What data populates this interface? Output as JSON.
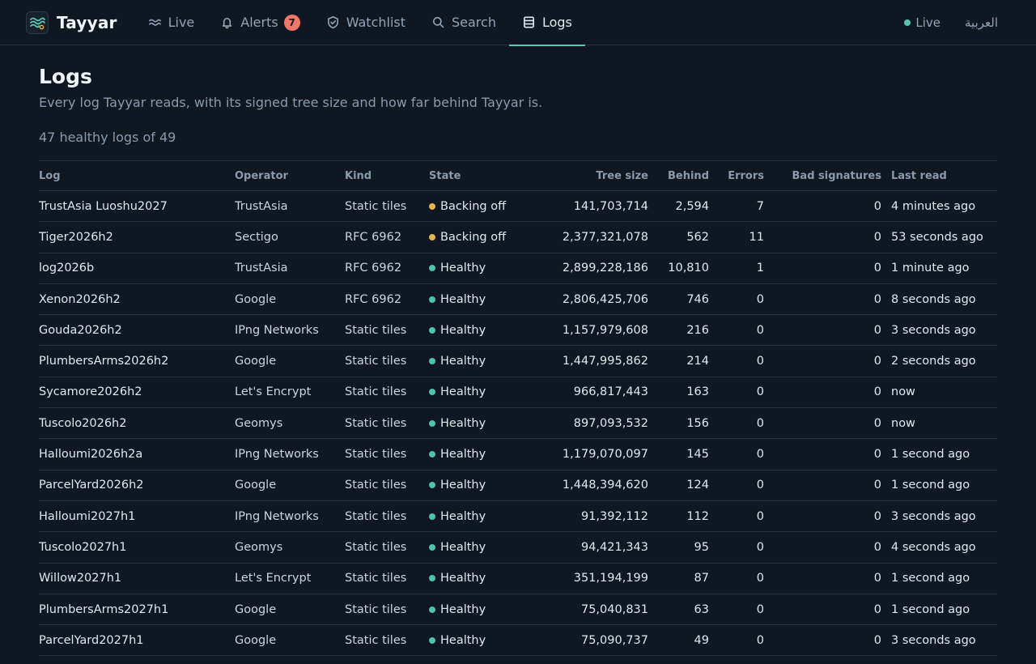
{
  "app": {
    "name": "Tayyar"
  },
  "nav": {
    "items": [
      {
        "label": "Live",
        "icon": "waves-icon"
      },
      {
        "label": "Alerts",
        "icon": "bell-icon",
        "badge": "7"
      },
      {
        "label": "Watchlist",
        "icon": "shield-icon"
      },
      {
        "label": "Search",
        "icon": "search-icon"
      },
      {
        "label": "Logs",
        "icon": "list-icon",
        "active": true
      }
    ]
  },
  "topbar": {
    "live_label": "Live",
    "language_label": "العربية"
  },
  "colors": {
    "accent": "#5ec7b5",
    "healthy": "#4fc4a8",
    "backing_off": "#e9b44c",
    "badge": "#f0786b",
    "background": "#0f1720"
  },
  "page": {
    "title": "Logs",
    "subtitle": "Every log Tayyar reads, with its signed tree size and how far behind Tayyar is.",
    "summary": "47 healthy logs of 49"
  },
  "table": {
    "columns": {
      "log": "Log",
      "operator": "Operator",
      "kind": "Kind",
      "state": "State",
      "tree_size": "Tree size",
      "behind": "Behind",
      "errors": "Errors",
      "bad_signatures": "Bad signatures",
      "last_read": "Last read"
    },
    "rows": [
      {
        "log": "TrustAsia Luoshu2027",
        "operator": "TrustAsia",
        "kind": "Static tiles",
        "state": "Backing off",
        "tree_size": "141,703,714",
        "behind": "2,594",
        "errors": "7",
        "bad_signatures": "0",
        "last_read": "4 minutes ago"
      },
      {
        "log": "Tiger2026h2",
        "operator": "Sectigo",
        "kind": "RFC 6962",
        "state": "Backing off",
        "tree_size": "2,377,321,078",
        "behind": "562",
        "errors": "11",
        "bad_signatures": "0",
        "last_read": "53 seconds ago"
      },
      {
        "log": "log2026b",
        "operator": "TrustAsia",
        "kind": "RFC 6962",
        "state": "Healthy",
        "tree_size": "2,899,228,186",
        "behind": "10,810",
        "errors": "1",
        "bad_signatures": "0",
        "last_read": "1 minute ago"
      },
      {
        "log": "Xenon2026h2",
        "operator": "Google",
        "kind": "RFC 6962",
        "state": "Healthy",
        "tree_size": "2,806,425,706",
        "behind": "746",
        "errors": "0",
        "bad_signatures": "0",
        "last_read": "8 seconds ago"
      },
      {
        "log": "Gouda2026h2",
        "operator": "IPng Networks",
        "kind": "Static tiles",
        "state": "Healthy",
        "tree_size": "1,157,979,608",
        "behind": "216",
        "errors": "0",
        "bad_signatures": "0",
        "last_read": "3 seconds ago"
      },
      {
        "log": "PlumbersArms2026h2",
        "operator": "Google",
        "kind": "Static tiles",
        "state": "Healthy",
        "tree_size": "1,447,995,862",
        "behind": "214",
        "errors": "0",
        "bad_signatures": "0",
        "last_read": "2 seconds ago"
      },
      {
        "log": "Sycamore2026h2",
        "operator": "Let's Encrypt",
        "kind": "Static tiles",
        "state": "Healthy",
        "tree_size": "966,817,443",
        "behind": "163",
        "errors": "0",
        "bad_signatures": "0",
        "last_read": "now"
      },
      {
        "log": "Tuscolo2026h2",
        "operator": "Geomys",
        "kind": "Static tiles",
        "state": "Healthy",
        "tree_size": "897,093,532",
        "behind": "156",
        "errors": "0",
        "bad_signatures": "0",
        "last_read": "now"
      },
      {
        "log": "Halloumi2026h2a",
        "operator": "IPng Networks",
        "kind": "Static tiles",
        "state": "Healthy",
        "tree_size": "1,179,070,097",
        "behind": "145",
        "errors": "0",
        "bad_signatures": "0",
        "last_read": "1 second ago"
      },
      {
        "log": "ParcelYard2026h2",
        "operator": "Google",
        "kind": "Static tiles",
        "state": "Healthy",
        "tree_size": "1,448,394,620",
        "behind": "124",
        "errors": "0",
        "bad_signatures": "0",
        "last_read": "1 second ago"
      },
      {
        "log": "Halloumi2027h1",
        "operator": "IPng Networks",
        "kind": "Static tiles",
        "state": "Healthy",
        "tree_size": "91,392,112",
        "behind": "112",
        "errors": "0",
        "bad_signatures": "0",
        "last_read": "3 seconds ago"
      },
      {
        "log": "Tuscolo2027h1",
        "operator": "Geomys",
        "kind": "Static tiles",
        "state": "Healthy",
        "tree_size": "94,421,343",
        "behind": "95",
        "errors": "0",
        "bad_signatures": "0",
        "last_read": "4 seconds ago"
      },
      {
        "log": "Willow2027h1",
        "operator": "Let's Encrypt",
        "kind": "Static tiles",
        "state": "Healthy",
        "tree_size": "351,194,199",
        "behind": "87",
        "errors": "0",
        "bad_signatures": "0",
        "last_read": "1 second ago"
      },
      {
        "log": "PlumbersArms2027h1",
        "operator": "Google",
        "kind": "Static tiles",
        "state": "Healthy",
        "tree_size": "75,040,831",
        "behind": "63",
        "errors": "0",
        "bad_signatures": "0",
        "last_read": "1 second ago"
      },
      {
        "log": "ParcelYard2027h1",
        "operator": "Google",
        "kind": "Static tiles",
        "state": "Healthy",
        "tree_size": "75,090,737",
        "behind": "49",
        "errors": "0",
        "bad_signatures": "0",
        "last_read": "3 seconds ago"
      }
    ]
  }
}
